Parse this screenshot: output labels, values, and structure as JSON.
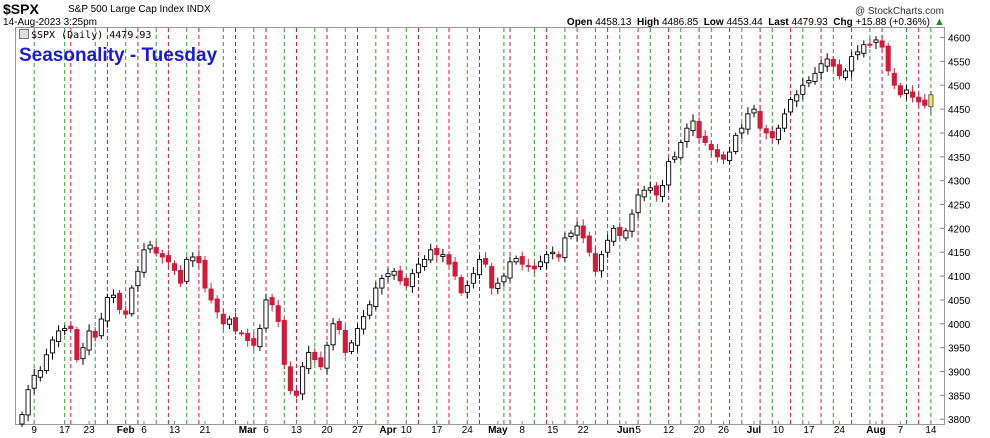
{
  "header": {
    "symbol": "$SPX",
    "description": "S&P 500 Large Cap Index  INDX",
    "datetime": "14-Aug-2023 3:25pm",
    "watermark": "@ StockCharts.com",
    "open_label": "Open",
    "open": "4458.13",
    "high_label": "High",
    "high": "4486.85",
    "low_label": "Low",
    "low": "4453.44",
    "last_label": "Last",
    "last": "4479.93",
    "chg_label": "Chg",
    "chg": "+15.88 (+0.36%)"
  },
  "legend": {
    "text": "$SPX (Daily) 4479.93"
  },
  "colors": {
    "up": "#000000",
    "down": "#d11a3c",
    "last_bar": "#f3e35a",
    "green_grid": "#2e9e2e",
    "red_grid": "#d11a3c",
    "title": "#1a1ad6"
  },
  "chart_data": {
    "type": "candlestick",
    "title": "Seasonality - Tuesday",
    "ylim": [
      3790,
      4620
    ],
    "y_ticks": [
      3800,
      3850,
      3900,
      3950,
      4000,
      4050,
      4100,
      4150,
      4200,
      4250,
      4300,
      4350,
      4400,
      4450,
      4500,
      4550,
      4600
    ],
    "x_tick_labels": [
      {
        "label": "9",
        "bar": 2
      },
      {
        "label": "17",
        "bar": 7
      },
      {
        "label": "23",
        "bar": 11
      },
      {
        "label": "Feb",
        "bar": 17
      },
      {
        "label": "6",
        "bar": 20
      },
      {
        "label": "13",
        "bar": 25
      },
      {
        "label": "21",
        "bar": 30
      },
      {
        "label": "Mar",
        "bar": 37
      },
      {
        "label": "6",
        "bar": 40
      },
      {
        "label": "13",
        "bar": 45
      },
      {
        "label": "20",
        "bar": 50
      },
      {
        "label": "27",
        "bar": 55
      },
      {
        "label": "Apr",
        "bar": 60
      },
      {
        "label": "10",
        "bar": 63
      },
      {
        "label": "17",
        "bar": 68
      },
      {
        "label": "24",
        "bar": 73
      },
      {
        "label": "May",
        "bar": 78
      },
      {
        "label": "8",
        "bar": 82
      },
      {
        "label": "15",
        "bar": 87
      },
      {
        "label": "22",
        "bar": 92
      },
      {
        "label": "Jun",
        "bar": 99
      },
      {
        "label": "5",
        "bar": 101
      },
      {
        "label": "12",
        "bar": 106
      },
      {
        "label": "20",
        "bar": 111
      },
      {
        "label": "26",
        "bar": 115
      },
      {
        "label": "Jul",
        "bar": 120
      },
      {
        "label": "10",
        "bar": 124
      },
      {
        "label": "17",
        "bar": 129
      },
      {
        "label": "24",
        "bar": 134
      },
      {
        "label": "Aug",
        "bar": 140
      },
      {
        "label": "7",
        "bar": 144
      },
      {
        "label": "14",
        "bar": 149
      }
    ],
    "green_lines_bar": [
      2,
      7,
      12,
      17,
      22,
      27,
      33,
      38,
      43,
      48,
      53,
      58,
      63,
      68,
      73,
      79,
      84,
      89,
      94,
      98,
      103,
      108,
      113,
      118,
      123,
      128,
      133,
      139,
      145,
      149
    ],
    "red_lines_bar": [
      8,
      14,
      19,
      24,
      29,
      35,
      40,
      45,
      50,
      55,
      60,
      65,
      70,
      75,
      80,
      86,
      91,
      96,
      101,
      106,
      111,
      116,
      121,
      126,
      131,
      136,
      141,
      147
    ],
    "close": [
      3810,
      3862,
      3892,
      3902,
      3935,
      3966,
      3985,
      3990,
      3990,
      3925,
      3950,
      3985,
      3972,
      4010,
      4055,
      4060,
      4030,
      4020,
      4075,
      4110,
      4155,
      4165,
      4148,
      4140,
      4130,
      4112,
      4085,
      4135,
      4140,
      4128,
      4075,
      4050,
      4025,
      4000,
      4010,
      3985,
      3980,
      3965,
      3955,
      3990,
      4050,
      4040,
      4005,
      3915,
      3860,
      3850,
      3910,
      3940,
      3925,
      3910,
      3955,
      4000,
      3988,
      3940,
      3960,
      3990,
      4015,
      4040,
      4075,
      4095,
      4105,
      4110,
      4090,
      4080,
      4105,
      4125,
      4135,
      4155,
      4145,
      4145,
      4125,
      4100,
      4065,
      4080,
      4105,
      4135,
      4125,
      4075,
      4085,
      4100,
      4130,
      4137,
      4125,
      4120,
      4115,
      4130,
      4145,
      4150,
      4140,
      4180,
      4190,
      4205,
      4180,
      4150,
      4110,
      4145,
      4175,
      4200,
      4185,
      4195,
      4230,
      4270,
      4280,
      4285,
      4270,
      4290,
      4340,
      4350,
      4380,
      4410,
      4425,
      4390,
      4380,
      4365,
      4350,
      4345,
      4360,
      4395,
      4410,
      4440,
      4450,
      4410,
      4400,
      4390,
      4410,
      4440,
      4470,
      4480,
      4500,
      4510,
      4525,
      4545,
      4555,
      4540,
      4520,
      4530,
      4560,
      4570,
      4585,
      4585,
      4595,
      4580,
      4530,
      4500,
      4480,
      4490,
      4475,
      4465,
      4458,
      4480
    ],
    "grid_note": "vertical dashed lines: green = Tuesdays marked up, red = marked down"
  }
}
